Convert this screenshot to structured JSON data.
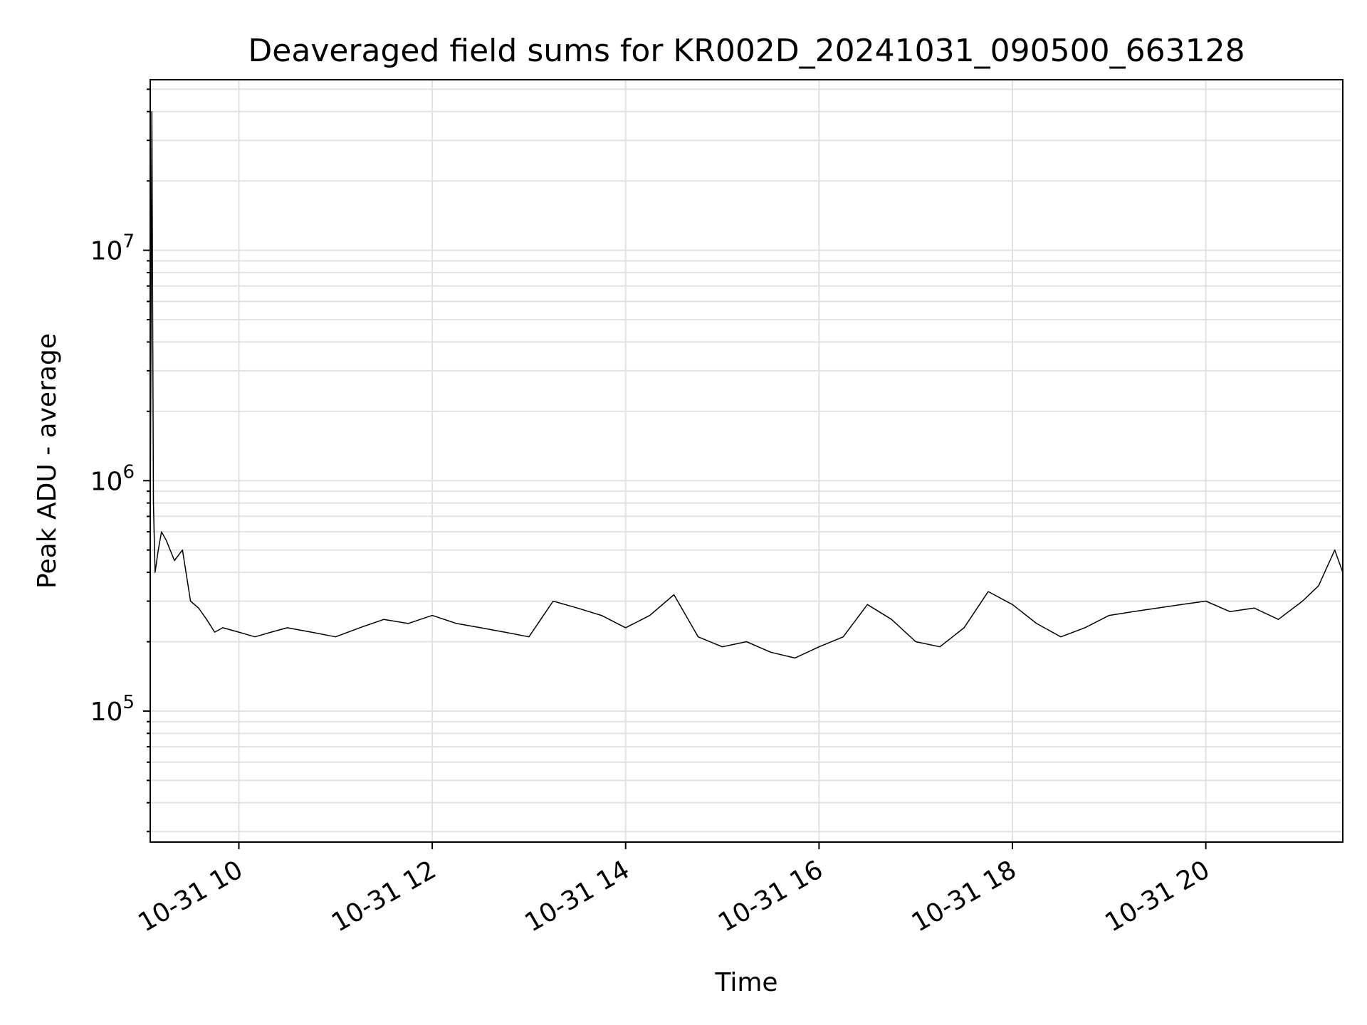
{
  "chart_data": {
    "type": "line",
    "title": "Deaveraged field sums for KR002D_20241031_090500_663128",
    "xlabel": "Time",
    "ylabel": "Peak ADU - average",
    "x_scale": "time",
    "y_scale": "log",
    "xlim": [
      "2024-10-31 09:05",
      "2024-10-31 21:25"
    ],
    "ylim": [
      27000,
      55000000
    ],
    "x_ticks": [
      {
        "value": "2024-10-31 10:00",
        "label": "10-31 10"
      },
      {
        "value": "2024-10-31 12:00",
        "label": "10-31 12"
      },
      {
        "value": "2024-10-31 14:00",
        "label": "10-31 14"
      },
      {
        "value": "2024-10-31 16:00",
        "label": "10-31 16"
      },
      {
        "value": "2024-10-31 18:00",
        "label": "10-31 18"
      },
      {
        "value": "2024-10-31 20:00",
        "label": "10-31 20"
      }
    ],
    "y_ticks": [
      {
        "value": 100000,
        "base": "10",
        "exp": "5"
      },
      {
        "value": 1000000,
        "base": "10",
        "exp": "6"
      },
      {
        "value": 10000000,
        "base": "10",
        "exp": "7"
      }
    ],
    "grid": true,
    "line_color": "#000000",
    "series": [
      {
        "x": [
          "2024-10-31 09:05",
          "2024-10-31 09:06",
          "2024-10-31 09:07",
          "2024-10-31 09:08",
          "2024-10-31 09:10",
          "2024-10-31 09:12",
          "2024-10-31 09:15",
          "2024-10-31 09:20",
          "2024-10-31 09:25",
          "2024-10-31 09:30",
          "2024-10-31 09:35",
          "2024-10-31 09:40",
          "2024-10-31 09:45",
          "2024-10-31 09:50",
          "2024-10-31 10:00",
          "2024-10-31 10:10",
          "2024-10-31 10:20",
          "2024-10-31 10:30",
          "2024-10-31 10:45",
          "2024-10-31 11:00",
          "2024-10-31 11:15",
          "2024-10-31 11:30",
          "2024-10-31 11:45",
          "2024-10-31 12:00",
          "2024-10-31 12:15",
          "2024-10-31 12:30",
          "2024-10-31 12:45",
          "2024-10-31 13:00",
          "2024-10-31 13:15",
          "2024-10-31 13:30",
          "2024-10-31 13:45",
          "2024-10-31 14:00",
          "2024-10-31 14:15",
          "2024-10-31 14:30",
          "2024-10-31 14:45",
          "2024-10-31 15:00",
          "2024-10-31 15:15",
          "2024-10-31 15:30",
          "2024-10-31 15:45",
          "2024-10-31 16:00",
          "2024-10-31 16:15",
          "2024-10-31 16:30",
          "2024-10-31 16:45",
          "2024-10-31 17:00",
          "2024-10-31 17:15",
          "2024-10-31 17:30",
          "2024-10-31 17:45",
          "2024-10-31 18:00",
          "2024-10-31 18:15",
          "2024-10-31 18:30",
          "2024-10-31 18:45",
          "2024-10-31 19:00",
          "2024-10-31 19:15",
          "2024-10-31 19:30",
          "2024-10-31 19:45",
          "2024-10-31 20:00",
          "2024-10-31 20:15",
          "2024-10-31 20:30",
          "2024-10-31 20:45",
          "2024-10-31 21:00",
          "2024-10-31 21:10",
          "2024-10-31 21:20",
          "2024-10-31 21:25"
        ],
        "y": [
          600000,
          40000000,
          800000,
          400000,
          500000,
          600000,
          550000,
          450000,
          500000,
          300000,
          280000,
          250000,
          220000,
          230000,
          220000,
          210000,
          220000,
          230000,
          220000,
          210000,
          230000,
          250000,
          240000,
          260000,
          240000,
          230000,
          220000,
          210000,
          300000,
          280000,
          260000,
          230000,
          260000,
          320000,
          210000,
          190000,
          200000,
          180000,
          170000,
          190000,
          210000,
          290000,
          250000,
          200000,
          190000,
          230000,
          330000,
          290000,
          240000,
          210000,
          230000,
          260000,
          270000,
          280000,
          290000,
          300000,
          270000,
          280000,
          250000,
          300000,
          350000,
          500000,
          400000
        ]
      }
    ]
  }
}
